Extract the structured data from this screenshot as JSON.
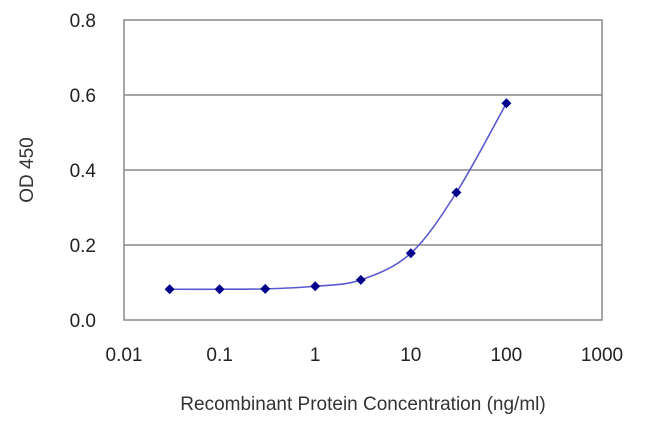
{
  "chart_data": {
    "type": "line",
    "xscale": "log",
    "xlabel": "Recombinant Protein Concentration (ng/ml)",
    "ylabel": "OD 450",
    "xlim": [
      0.01,
      1000
    ],
    "ylim": [
      0.0,
      0.8
    ],
    "x_ticks": [
      "0.01",
      "0.1",
      "1",
      "10",
      "100",
      "1000"
    ],
    "y_ticks": [
      "0.0",
      "0.2",
      "0.4",
      "0.6",
      "0.8"
    ],
    "grid": "horizontal",
    "series": [
      {
        "x": [
          0.03,
          0.1,
          0.3,
          1,
          3,
          10,
          30,
          100
        ],
        "values": [
          0.082,
          0.082,
          0.083,
          0.09,
          0.107,
          0.178,
          0.34,
          0.578
        ],
        "color": "#00008b",
        "marker": "diamond"
      }
    ]
  }
}
